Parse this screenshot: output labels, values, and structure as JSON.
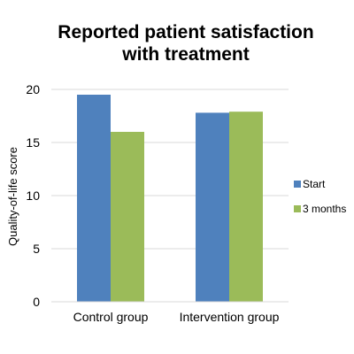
{
  "chart_data": {
    "type": "bar",
    "title_lines": [
      "Reported patient satisfaction",
      "with treatment"
    ],
    "xlabel": "",
    "ylabel": "Quality-of-life  score",
    "categories": [
      "Control group",
      "Intervention group"
    ],
    "series": [
      {
        "name": "Start",
        "values": [
          19.5,
          17.8
        ],
        "color": "#4f81bd"
      },
      {
        "name": "3 months",
        "values": [
          16.0,
          17.9
        ],
        "color": "#9bbb59"
      }
    ],
    "ylim": [
      0,
      20
    ],
    "yticks": [
      "0",
      "5",
      "10",
      "15",
      "20"
    ],
    "ytick_values": [
      0,
      5,
      10,
      15,
      20
    ],
    "grid": true,
    "legend_position": "right"
  }
}
